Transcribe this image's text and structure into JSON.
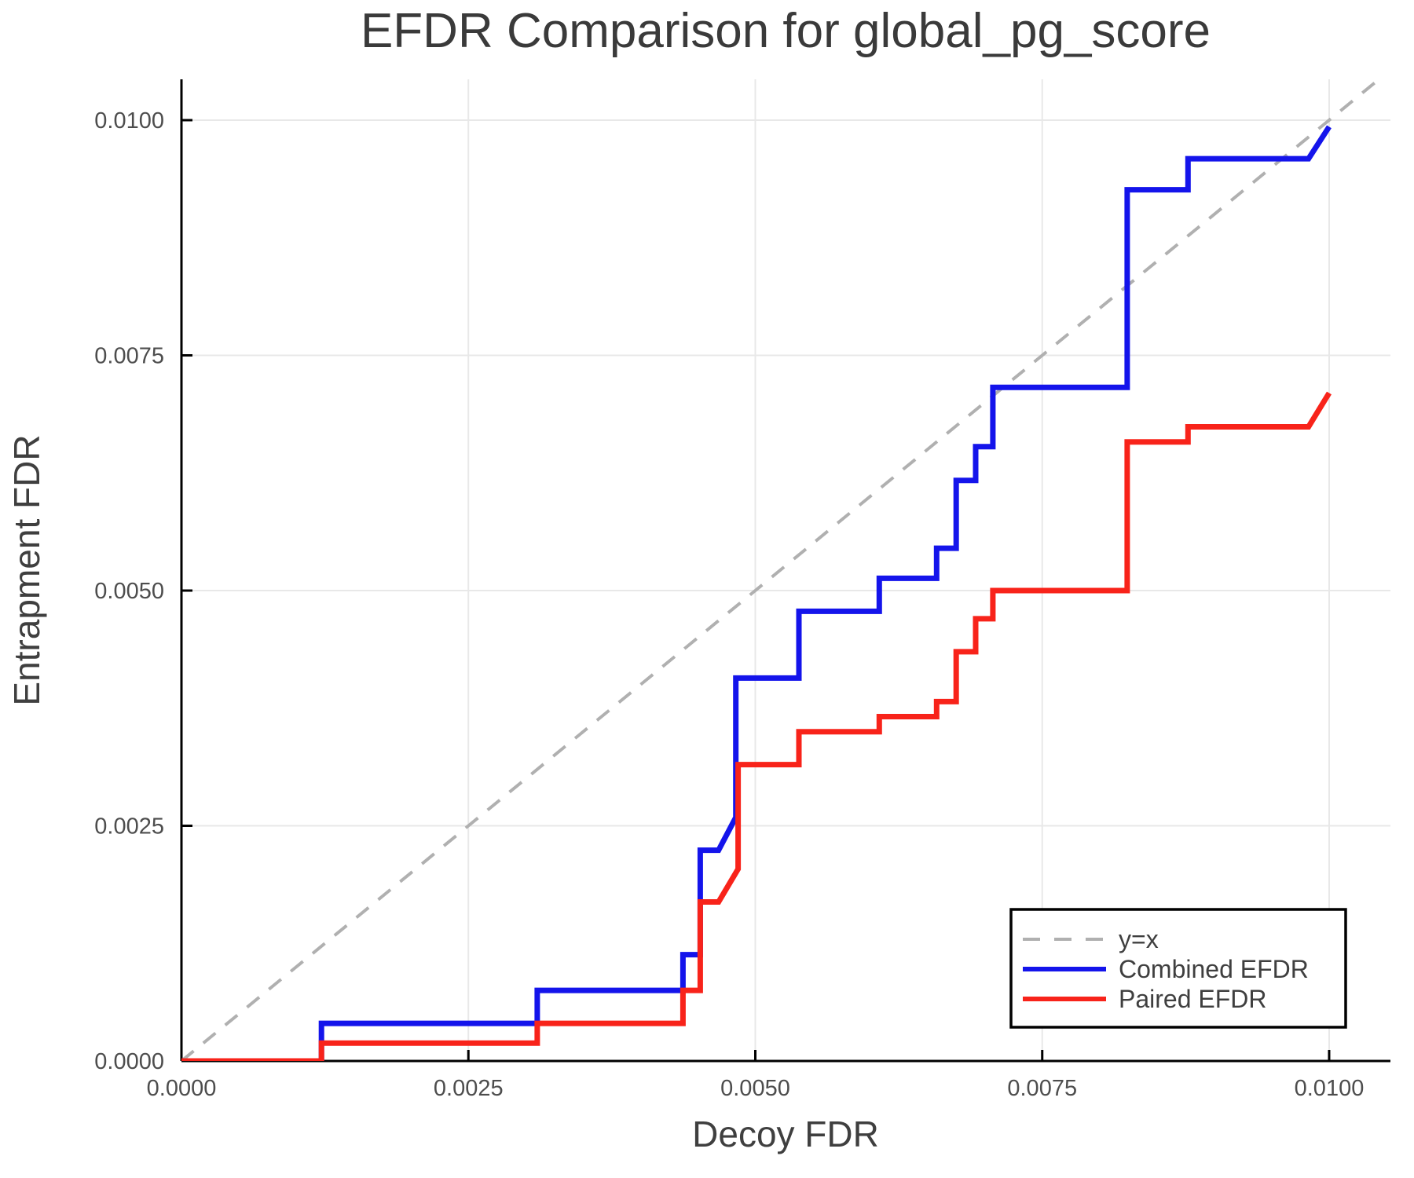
{
  "figure": {
    "background": "#ffffff",
    "axis_color": "#000000",
    "grid_color": "#e8e8e8",
    "title_color": "#3a3a3a",
    "tick_label_color": "#4d4d4d"
  },
  "chart_data": {
    "type": "line",
    "title": "EFDR Comparison for global_pg_score",
    "xlabel": "Decoy FDR",
    "ylabel": "Entrapment FDR",
    "xlim": [
      0,
      0.010534
    ],
    "ylim": [
      0,
      0.010434
    ],
    "grid": true,
    "legend_position": "bottom-right",
    "xticks": {
      "values": [
        0.0,
        0.0025,
        0.005,
        0.0075,
        0.01
      ],
      "labels": [
        "0.0000",
        "0.0025",
        "0.0050",
        "0.0075",
        "0.0100"
      ]
    },
    "yticks": {
      "values": [
        0.0,
        0.0025,
        0.005,
        0.0075,
        0.01
      ],
      "labels": [
        "0.0000",
        "0.0025",
        "0.0050",
        "0.0075",
        "0.0100"
      ]
    },
    "series": [
      {
        "name": "y=x",
        "color": "#b0b0b0",
        "width": 4,
        "dash": "20 16",
        "points": [
          [
            0,
            0
          ],
          [
            0.010434,
            0.010434
          ]
        ]
      },
      {
        "name": "Combined EFDR",
        "color": "#1414eb",
        "width": 7,
        "dash": null,
        "points": [
          [
            0,
            0
          ],
          [
            0.00122,
            0
          ],
          [
            0.00122,
            0.0004
          ],
          [
            0.0031,
            0.0004
          ],
          [
            0.0031,
            0.00075
          ],
          [
            0.00437,
            0.00075
          ],
          [
            0.00437,
            0.00113
          ],
          [
            0.00452,
            0.00113
          ],
          [
            0.00452,
            0.00224
          ],
          [
            0.00468,
            0.00224
          ],
          [
            0.00483,
            0.00259
          ],
          [
            0.00483,
            0.00407
          ],
          [
            0.00538,
            0.00407
          ],
          [
            0.00538,
            0.00478
          ],
          [
            0.00608,
            0.00478
          ],
          [
            0.00608,
            0.00513
          ],
          [
            0.00658,
            0.00513
          ],
          [
            0.00658,
            0.00545
          ],
          [
            0.00675,
            0.00545
          ],
          [
            0.00675,
            0.00617
          ],
          [
            0.00692,
            0.00617
          ],
          [
            0.00692,
            0.00653
          ],
          [
            0.00707,
            0.00653
          ],
          [
            0.00707,
            0.00716
          ],
          [
            0.00824,
            0.00716
          ],
          [
            0.00824,
            0.00926
          ],
          [
            0.00877,
            0.00926
          ],
          [
            0.00877,
            0.00959
          ],
          [
            0.00982,
            0.00959
          ],
          [
            0.01,
            0.00993
          ]
        ]
      },
      {
        "name": "Paired EFDR",
        "color": "#f8231a",
        "width": 7,
        "dash": null,
        "points": [
          [
            0,
            0
          ],
          [
            0.00122,
            0
          ],
          [
            0.00122,
            0.00019
          ],
          [
            0.0031,
            0.00019
          ],
          [
            0.0031,
            0.0004
          ],
          [
            0.00437,
            0.0004
          ],
          [
            0.00437,
            0.00075
          ],
          [
            0.00452,
            0.00075
          ],
          [
            0.00452,
            0.00169
          ],
          [
            0.00468,
            0.00169
          ],
          [
            0.00485,
            0.00204
          ],
          [
            0.00485,
            0.00315
          ],
          [
            0.00538,
            0.00315
          ],
          [
            0.00538,
            0.0035
          ],
          [
            0.00608,
            0.0035
          ],
          [
            0.00608,
            0.00366
          ],
          [
            0.00658,
            0.00366
          ],
          [
            0.00658,
            0.00382
          ],
          [
            0.00675,
            0.00382
          ],
          [
            0.00675,
            0.00435
          ],
          [
            0.00692,
            0.00435
          ],
          [
            0.00692,
            0.0047
          ],
          [
            0.00707,
            0.0047
          ],
          [
            0.00707,
            0.005
          ],
          [
            0.00824,
            0.005
          ],
          [
            0.00824,
            0.00658
          ],
          [
            0.00877,
            0.00658
          ],
          [
            0.00877,
            0.00674
          ],
          [
            0.00982,
            0.00674
          ],
          [
            0.01,
            0.0071
          ]
        ]
      }
    ],
    "legend": {
      "entries": [
        "y=x",
        "Combined EFDR",
        "Paired EFDR"
      ]
    }
  }
}
